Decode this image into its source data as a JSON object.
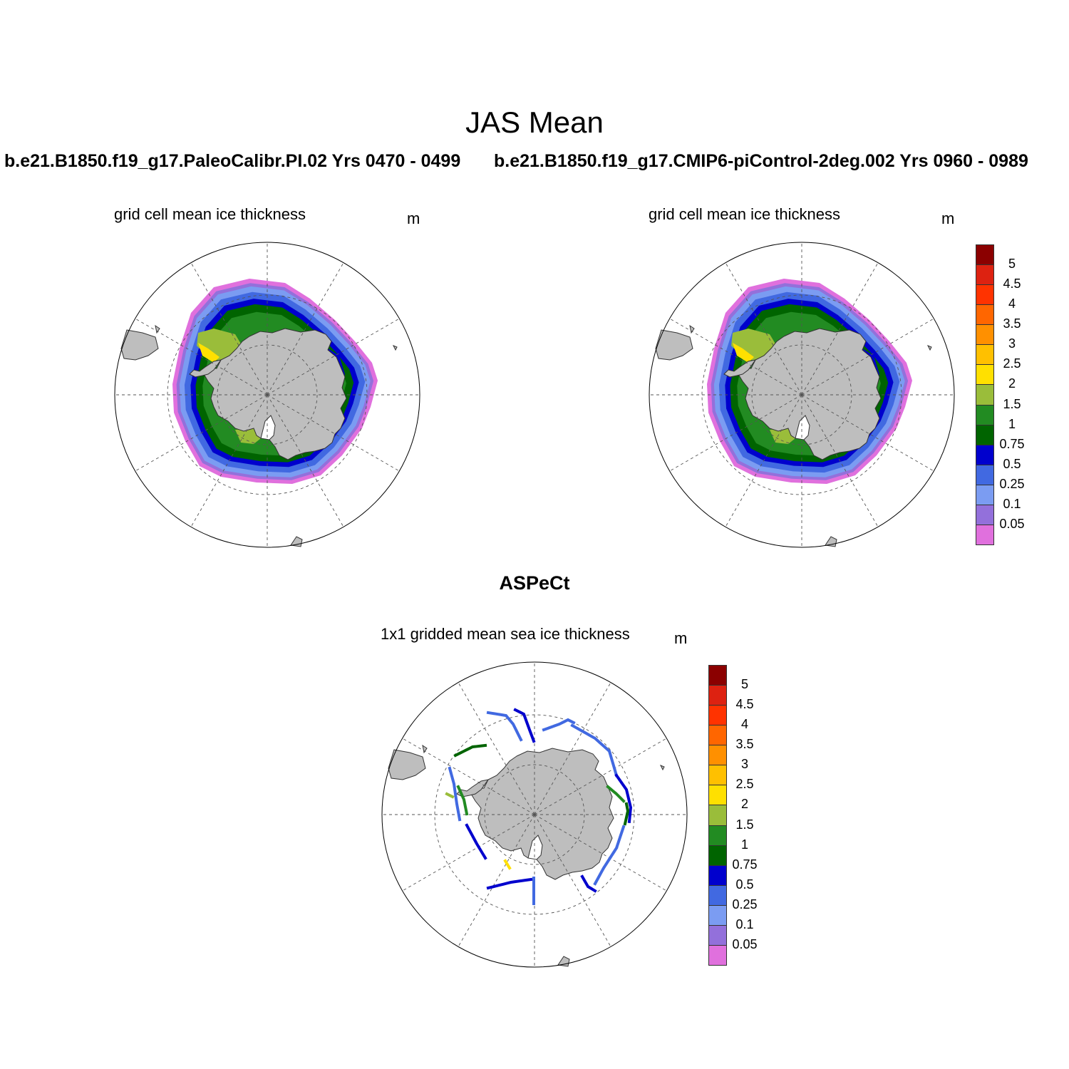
{
  "figure": {
    "title": "JAS Mean",
    "section_title": "ASPeCt"
  },
  "panels": [
    {
      "run_title": "b.e21.B1850.f19_g17.PaleoCalibr.PI.02  Yrs 0470 - 0499",
      "variable": "grid cell mean ice thickness",
      "units": "m"
    },
    {
      "run_title": "b.e21.B1850.f19_g17.CMIP6-piControl-2deg.002  Yrs 0960 - 0989",
      "variable": "grid cell mean ice thickness",
      "units": "m"
    },
    {
      "variable": "1x1 gridded mean sea ice thickness",
      "units": "m"
    }
  ],
  "colorbar": {
    "labels": [
      "0.05",
      "0.1",
      "0.25",
      "0.5",
      "0.75",
      "1",
      "1.5",
      "2",
      "2.5",
      "3",
      "3.5",
      "4",
      "4.5",
      "5"
    ],
    "colors": [
      "#e070dd",
      "#9370db",
      "#7b9cf2",
      "#4169e1",
      "#0000cd",
      "#006400",
      "#228b22",
      "#9abd3a",
      "#ffe000",
      "#ffc000",
      "#ff9000",
      "#ff6600",
      "#ff3300",
      "#dd2211",
      "#8b0000"
    ]
  },
  "map_colors": {
    "land": "#bebebe",
    "ocean": "#ffffff"
  }
}
